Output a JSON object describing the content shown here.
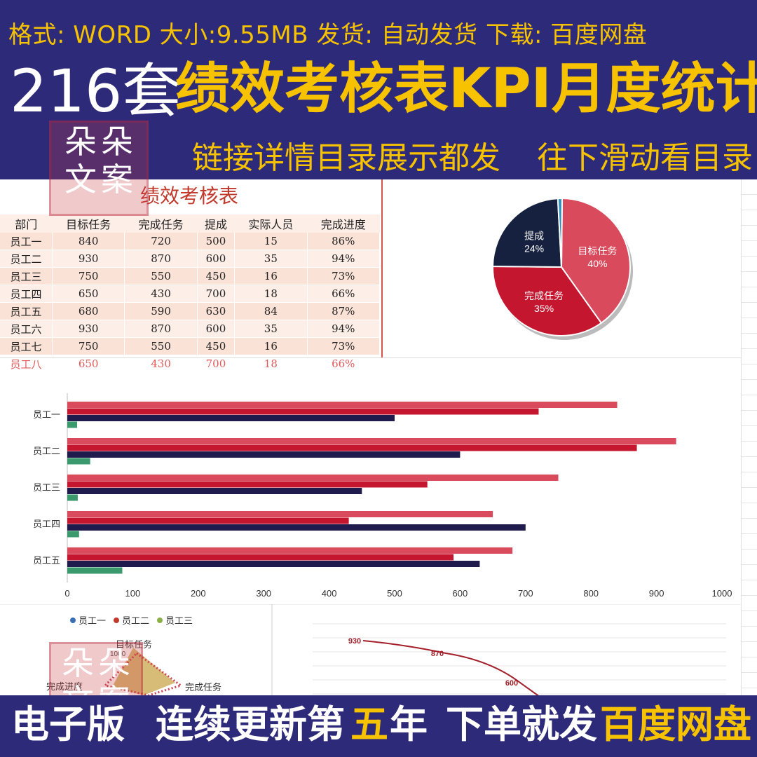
{
  "banner": {
    "format_line": "格式: WORD  大小:9.55MB 发货: 自动发货  下载: 百度网盘",
    "count": "216套",
    "headline": "绩效考核表KPI月度统计",
    "sub_left": "链接详情目录展示都发",
    "sub_right": "往下滑动看目录"
  },
  "watermark": {
    "chars": [
      "朵",
      "朵",
      "文",
      "案"
    ]
  },
  "sheet": {
    "title": "绩效考核表",
    "headers": [
      "部门",
      "目标任务",
      "完成任务",
      "提成",
      "实际人员",
      "完成进度"
    ],
    "rows": [
      [
        "员工一",
        "840",
        "720",
        "500",
        "15",
        "86%"
      ],
      [
        "员工二",
        "930",
        "870",
        "600",
        "35",
        "94%"
      ],
      [
        "员工三",
        "750",
        "550",
        "450",
        "16",
        "73%"
      ],
      [
        "员工四",
        "650",
        "430",
        "700",
        "18",
        "66%"
      ],
      [
        "员工五",
        "680",
        "590",
        "630",
        "84",
        "87%"
      ],
      [
        "员工六",
        "930",
        "870",
        "600",
        "35",
        "94%"
      ],
      [
        "员工七",
        "750",
        "550",
        "450",
        "16",
        "73%"
      ],
      [
        "员工八",
        "650",
        "430",
        "700",
        "18",
        "66%"
      ]
    ]
  },
  "colors": {
    "banner_bg": "#2e2a7a",
    "banner_yellow": "#f7c300",
    "target": "#d94a5c",
    "done": "#c4162f",
    "commission": "#1f1b4d",
    "people": "#3a9a6e"
  },
  "chart_data": [
    {
      "type": "pie",
      "categories": [
        "目标任务",
        "完成任务",
        "提成",
        ""
      ],
      "values": [
        40,
        35,
        24,
        1
      ],
      "labels": [
        "40%",
        "35%",
        "24%",
        ""
      ],
      "colors": [
        "#d94a5c",
        "#c4162f",
        "#15213f",
        "#2a8fbf"
      ]
    },
    {
      "type": "bar",
      "orientation": "horizontal",
      "categories": [
        "员工一",
        "员工二",
        "员工三",
        "员工四",
        "员工五"
      ],
      "series": [
        {
          "values": [
            840,
            930,
            750,
            650,
            680
          ],
          "color": "#d94a5c"
        },
        {
          "values": [
            720,
            870,
            550,
            430,
            590
          ],
          "color": "#c4162f"
        },
        {
          "values": [
            500,
            600,
            450,
            700,
            630
          ],
          "color": "#1f1b4d"
        },
        {
          "values": [
            15,
            35,
            16,
            18,
            84
          ],
          "color": "#3a9a6e"
        }
      ],
      "xlim": [
        0,
        1000
      ],
      "xticks": [
        "0",
        "100",
        "200",
        "300",
        "400",
        "500",
        "600",
        "700",
        "800",
        "900",
        "1000"
      ]
    },
    {
      "type": "radar",
      "legend": [
        "员工一",
        "员工二",
        "员工三"
      ],
      "axes": [
        "目标任务",
        "完成任务",
        "完成进度"
      ],
      "ticks": [
        "1000"
      ]
    },
    {
      "type": "line",
      "values": [
        930,
        870,
        600
      ],
      "labels": [
        "930",
        "870",
        "600"
      ],
      "color": "#a31f2a"
    }
  ],
  "footer": {
    "part1": "电子版",
    "part2": "连续更新第",
    "part3": "五",
    "part4": "年",
    "part5": "下单就发",
    "part6": "百度网盘"
  }
}
